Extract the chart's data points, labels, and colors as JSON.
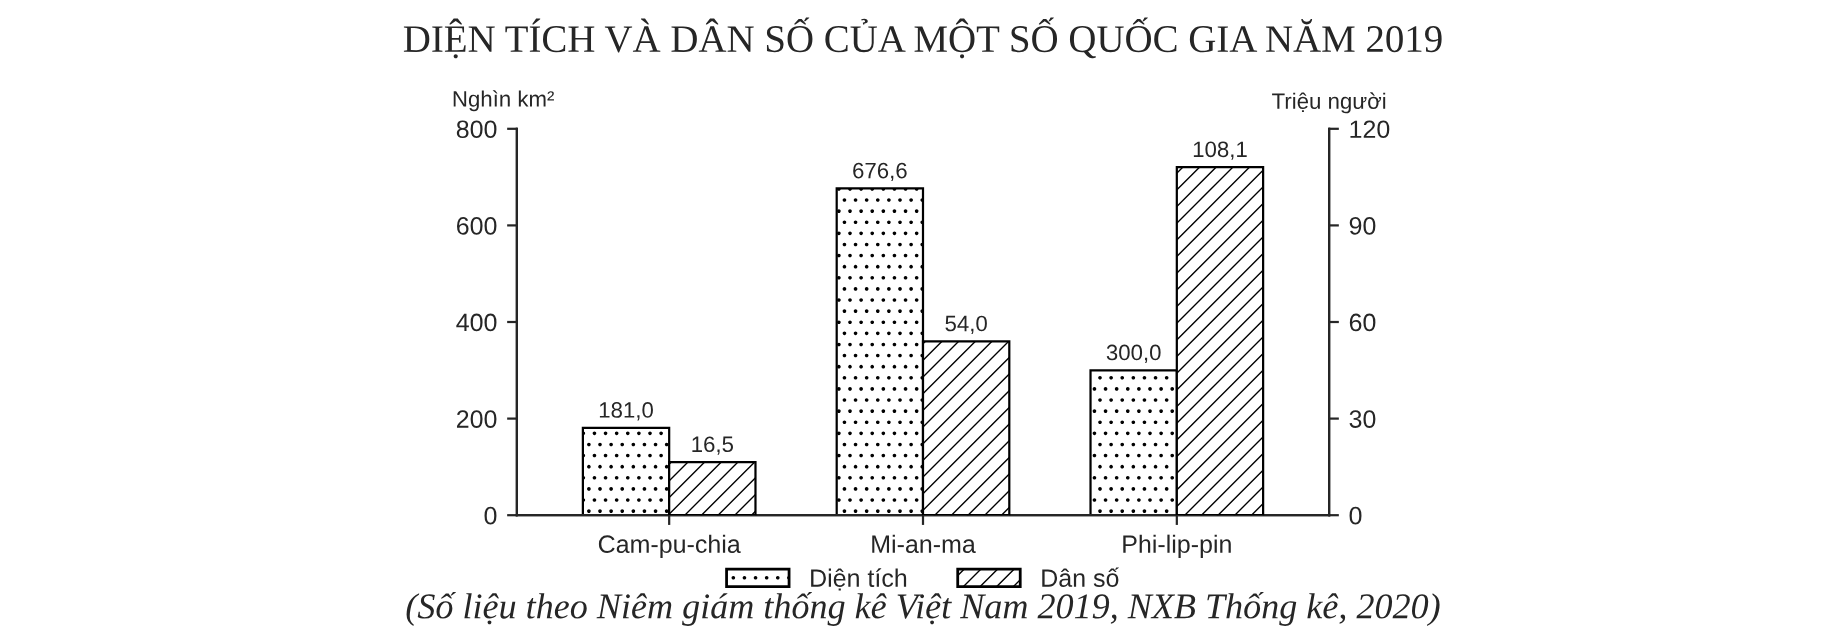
{
  "chart_data": {
    "type": "bar",
    "title": "DIỆN TÍCH VÀ DÂN SỐ CỦA MỘT SỐ QUỐC GIA NĂM 2019",
    "ylabel": "Nghìn km²",
    "y2label": "Triệu người",
    "categories": [
      "Cam-pu-chia",
      "Mi-an-ma",
      "Phi-lip-pin"
    ],
    "series": [
      {
        "name": "Diện tích",
        "color": "#000000",
        "values": [
          181.0,
          676.6,
          300.0
        ],
        "value_labels": [
          "181,0",
          "676,6",
          "300,0"
        ]
      },
      {
        "name": "Dân số",
        "color": "#000000",
        "values": [
          16.5,
          54.0,
          108.1
        ],
        "value_labels": [
          "16,5",
          "54,0",
          "108,1"
        ],
        "axis": "y2"
      }
    ],
    "ylim": [
      0,
      800
    ],
    "yticks": [
      0,
      200,
      400,
      600,
      800
    ],
    "y2lim": [
      0,
      120
    ],
    "y2ticks": [
      0,
      30,
      60,
      90,
      120
    ],
    "legend": "bottom",
    "grid": false,
    "annotations": [
      "(Số liệu theo Niêm giám thống kê Việt Nam 2019, NXB Thống kê, 2020)"
    ]
  }
}
